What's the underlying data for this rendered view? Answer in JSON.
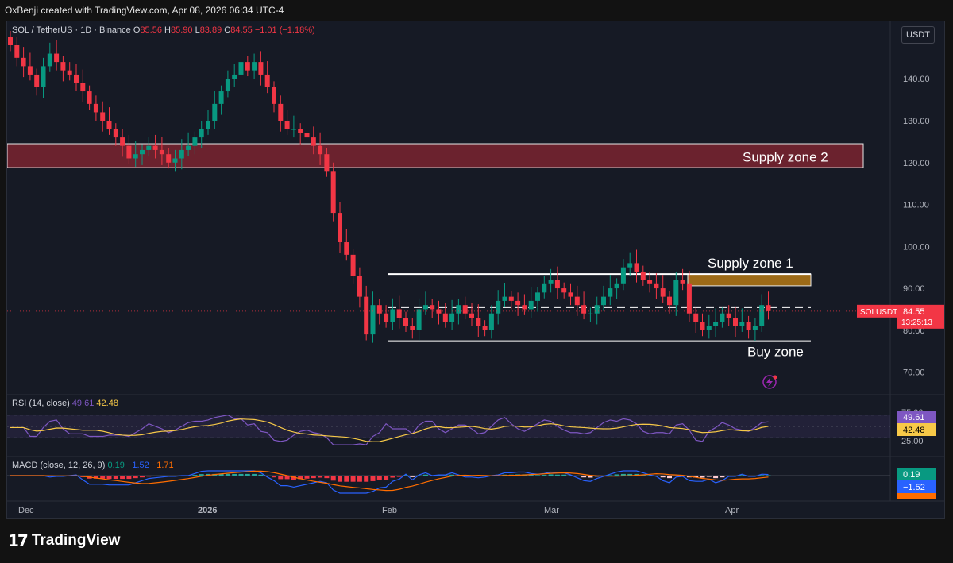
{
  "header": {
    "title": "OxBenji created with TradingView.com, Apr 08, 2026 06:34 UTC-4"
  },
  "symbol": {
    "name": "SOL / TetherUS · 1D · Binance",
    "open_label": "O",
    "open": "85.56",
    "high_label": "H",
    "high": "85.90",
    "low_label": "L",
    "low": "83.89",
    "close_label": "C",
    "close": "84.55",
    "change": "−1.01 (−1.18%)"
  },
  "currency": "USDT",
  "price_axis": {
    "ticks": [
      "140.00",
      "130.00",
      "120.00",
      "110.00",
      "100.00",
      "90.00",
      "80.00",
      "70.00"
    ]
  },
  "price_tag": {
    "symbol": "SOLUSDT",
    "price": "84.55",
    "countdown": "13:25:13"
  },
  "annotations": {
    "supply_zone_2": "Supply zone 2",
    "supply_zone_1": "Supply zone 1",
    "buy_zone": "Buy zone"
  },
  "rsi": {
    "label": "RSI (14, close)",
    "value1": "49.61",
    "value2": "42.48",
    "axis_top": "75.00",
    "axis_bottom": "25.00",
    "tag1": "49.61",
    "tag2": "42.48"
  },
  "macd": {
    "label": "MACD (close, 12, 26, 9)",
    "v1": "0.19",
    "v2": "−1.52",
    "v3": "−1.71",
    "tag1": "0.19",
    "tag2": "−1.52"
  },
  "time_axis": {
    "labels": [
      "Dec",
      "2026",
      "Feb",
      "Mar",
      "Apr"
    ]
  },
  "brand": {
    "name": "TradingView"
  },
  "colors": {
    "up": "#089981",
    "down": "#f23645",
    "bg": "#161a25",
    "zone2": "#7a2430",
    "zone1": "#9c6a17"
  },
  "chart_data": {
    "type": "candlestick",
    "price_range": [
      65,
      148
    ],
    "close_series": [
      148,
      145,
      143,
      141,
      138,
      143,
      146,
      144,
      142,
      141,
      139,
      137,
      134,
      132,
      130,
      128,
      126,
      124,
      121,
      122,
      123,
      124,
      123,
      122,
      120,
      121,
      123,
      124,
      126,
      128,
      130,
      134,
      137,
      140,
      141,
      144,
      142,
      144,
      141,
      138,
      134,
      130,
      128,
      128,
      127,
      126,
      124,
      122,
      118,
      108,
      101,
      98,
      93,
      88,
      79,
      86,
      84,
      82,
      85,
      83,
      81,
      80,
      85,
      86,
      85,
      84,
      82,
      84,
      86,
      84,
      83,
      81,
      80,
      84,
      87,
      88,
      87,
      86,
      85,
      87,
      89,
      91,
      92,
      90,
      89,
      88,
      86,
      84,
      84,
      86,
      88,
      90,
      91,
      95,
      96,
      94,
      92,
      91,
      90,
      88,
      86,
      92,
      91,
      84,
      82,
      80,
      81,
      82,
      84,
      83,
      81,
      82,
      80,
      81,
      86,
      84.55
    ]
  }
}
